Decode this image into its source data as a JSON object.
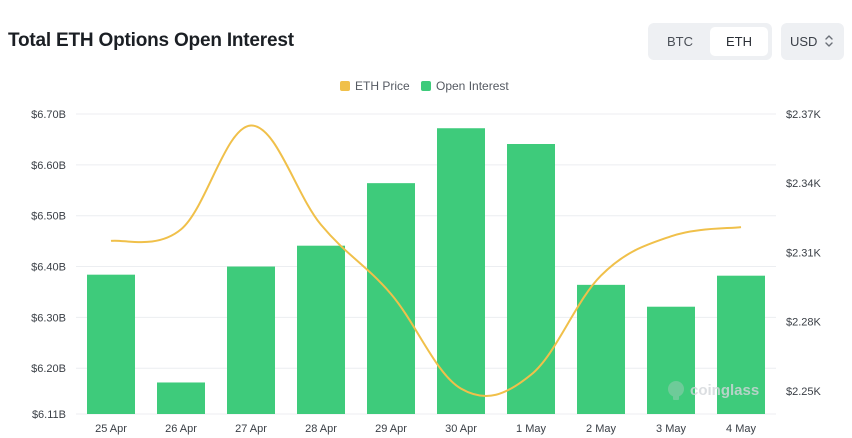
{
  "header": {
    "title": "Total ETH Options Open Interest"
  },
  "toggle": {
    "btc_label": "BTC",
    "eth_label": "ETH",
    "selected": "ETH"
  },
  "currency": {
    "value": "USD",
    "icon": "chevron-updown-icon"
  },
  "legend": [
    {
      "label": "ETH Price",
      "color": "#f0c04a"
    },
    {
      "label": "Open Interest",
      "color": "#3ecb7b"
    }
  ],
  "watermark": {
    "text": "coinglass",
    "icon": "coinglass-logo-icon"
  },
  "chart_data": {
    "type": "bar",
    "categories": [
      "25 Apr",
      "26 Apr",
      "27 Apr",
      "28 Apr",
      "29 Apr",
      "30 Apr",
      "1 May",
      "2 May",
      "3 May",
      "4 May"
    ],
    "series": [
      {
        "name": "Open Interest",
        "type": "bar",
        "axis": "left",
        "color": "#3ecb7b",
        "values": [
          6.384,
          6.172,
          6.4,
          6.441,
          6.564,
          6.672,
          6.641,
          6.364,
          6.321,
          6.382
        ]
      },
      {
        "name": "ETH Price",
        "type": "line",
        "axis": "right",
        "color": "#f0c04a",
        "values": [
          2315,
          2320,
          2365,
          2322,
          2292,
          2251,
          2257,
          2300,
          2317,
          2321
        ]
      }
    ],
    "y_left": {
      "ticks": [
        "$6.11B",
        "$6.20B",
        "$6.30B",
        "$6.40B",
        "$6.50B",
        "$6.60B",
        "$6.70B"
      ],
      "range": [
        6.11,
        6.7
      ],
      "unit": "$B"
    },
    "y_right": {
      "ticks": [
        "$2.25K",
        "$2.28K",
        "$2.31K",
        "$2.34K",
        "$2.37K"
      ],
      "range": [
        2240,
        2370
      ],
      "unit": "$K"
    },
    "grid": "horizontal",
    "legend_position": "top-center"
  }
}
